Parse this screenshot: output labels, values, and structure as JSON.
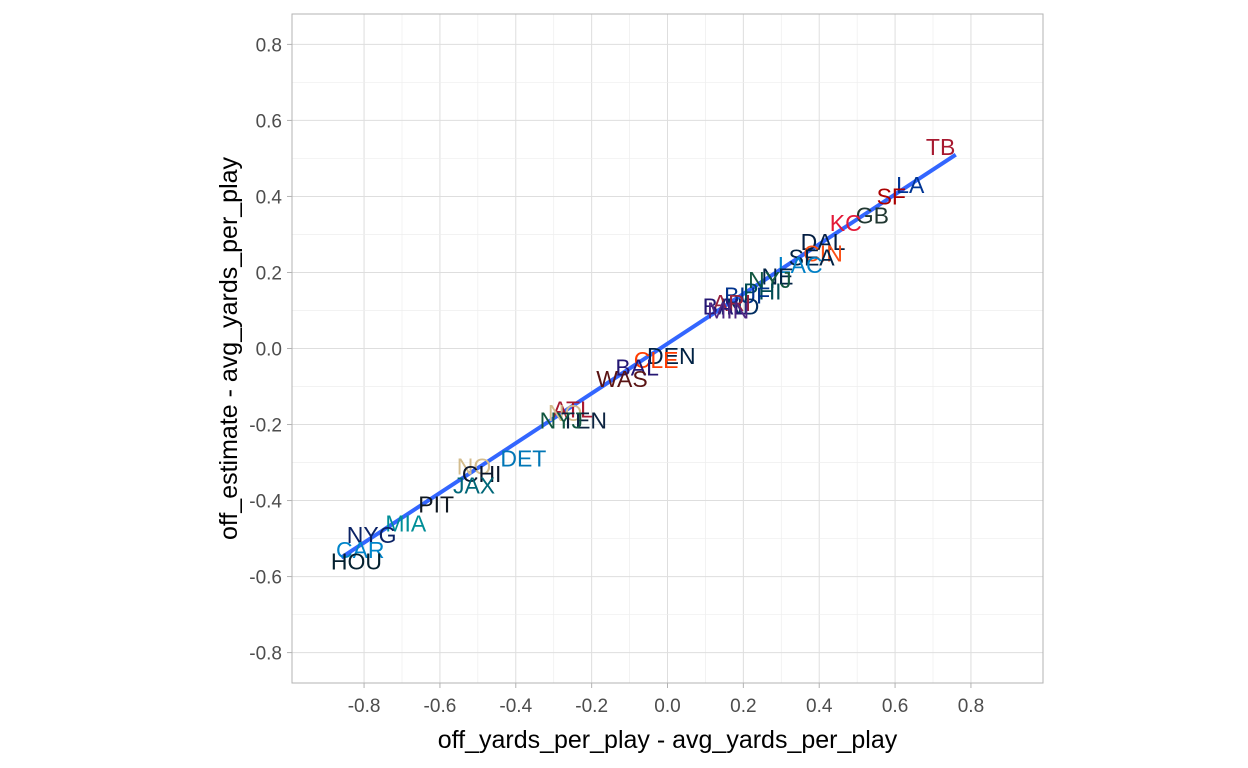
{
  "chart_data": {
    "type": "scatter",
    "xlabel": "off_yards_per_play - avg_yards_per_play",
    "ylabel": "off_estimate - avg_yards_per_play",
    "xlim": [
      -0.99,
      0.99
    ],
    "ylim": [
      -0.88,
      0.88
    ],
    "x_ticks": [
      "-0.8",
      "-0.6",
      "-0.4",
      "-0.2",
      "0.0",
      "0.2",
      "0.4",
      "0.6",
      "0.8"
    ],
    "y_ticks": [
      "-0.8",
      "-0.6",
      "-0.4",
      "-0.2",
      "0.0",
      "0.2",
      "0.4",
      "0.6",
      "0.8"
    ],
    "grid": true,
    "fit_line": {
      "x": [
        -0.86,
        0.76
      ],
      "y": [
        -0.55,
        0.51
      ],
      "color": "#3366ff"
    },
    "points": [
      {
        "label": "TB",
        "x": 0.72,
        "y": 0.53,
        "color": "#a71930"
      },
      {
        "label": "LA",
        "x": 0.64,
        "y": 0.43,
        "color": "#003594"
      },
      {
        "label": "SF",
        "x": 0.59,
        "y": 0.4,
        "color": "#aa0000"
      },
      {
        "label": "GB",
        "x": 0.54,
        "y": 0.35,
        "color": "#203731"
      },
      {
        "label": "KC",
        "x": 0.47,
        "y": 0.33,
        "color": "#e31837"
      },
      {
        "label": "DAL",
        "x": 0.41,
        "y": 0.28,
        "color": "#041e42"
      },
      {
        "label": "CIN",
        "x": 0.41,
        "y": 0.25,
        "color": "#fb4f14"
      },
      {
        "label": "SEA",
        "x": 0.38,
        "y": 0.24,
        "color": "#002244"
      },
      {
        "label": "LAC",
        "x": 0.35,
        "y": 0.22,
        "color": "#0080c6"
      },
      {
        "label": "NE",
        "x": 0.29,
        "y": 0.19,
        "color": "#002244"
      },
      {
        "label": "NYJ",
        "x": 0.27,
        "y": 0.18,
        "color": "#125740"
      },
      {
        "label": "PHI",
        "x": 0.25,
        "y": 0.15,
        "color": "#004c54"
      },
      {
        "label": "BUF",
        "x": 0.21,
        "y": 0.14,
        "color": "#00338d"
      },
      {
        "label": "IND",
        "x": 0.19,
        "y": 0.11,
        "color": "#002c5f"
      },
      {
        "label": "ARI",
        "x": 0.17,
        "y": 0.12,
        "color": "#97233f"
      },
      {
        "label": "BAL",
        "x": 0.15,
        "y": 0.11,
        "color": "#241773"
      },
      {
        "label": "MIN",
        "x": 0.16,
        "y": 0.1,
        "color": "#4f2683"
      },
      {
        "label": "DEN",
        "x": 0.01,
        "y": -0.02,
        "color": "#002244"
      },
      {
        "label": "CLE",
        "x": -0.03,
        "y": -0.03,
        "color": "#ff3c00"
      },
      {
        "label": "BAL",
        "x": -0.08,
        "y": -0.05,
        "color": "#241773"
      },
      {
        "label": "WAS",
        "x": -0.12,
        "y": -0.08,
        "color": "#5a1414"
      },
      {
        "label": "ATL",
        "x": -0.25,
        "y": -0.16,
        "color": "#a71930"
      },
      {
        "label": "NO",
        "x": -0.27,
        "y": -0.17,
        "color": "#d3bc8d"
      },
      {
        "label": "TEN",
        "x": -0.22,
        "y": -0.19,
        "color": "#0c2340"
      },
      {
        "label": "NYJ",
        "x": -0.28,
        "y": -0.19,
        "color": "#125740"
      },
      {
        "label": "DET",
        "x": -0.38,
        "y": -0.29,
        "color": "#0076b6"
      },
      {
        "label": "NO",
        "x": -0.51,
        "y": -0.31,
        "color": "#d3bc8d"
      },
      {
        "label": "CHI",
        "x": -0.49,
        "y": -0.33,
        "color": "#0b162a"
      },
      {
        "label": "JAX",
        "x": -0.51,
        "y": -0.36,
        "color": "#006778"
      },
      {
        "label": "PIT",
        "x": -0.61,
        "y": -0.41,
        "color": "#101820"
      },
      {
        "label": "MIA",
        "x": -0.69,
        "y": -0.46,
        "color": "#008e97"
      },
      {
        "label": "NYG",
        "x": -0.78,
        "y": -0.49,
        "color": "#0b2265"
      },
      {
        "label": "CAR",
        "x": -0.81,
        "y": -0.53,
        "color": "#0085ca"
      },
      {
        "label": "HOU",
        "x": -0.82,
        "y": -0.56,
        "color": "#03202f"
      }
    ]
  }
}
